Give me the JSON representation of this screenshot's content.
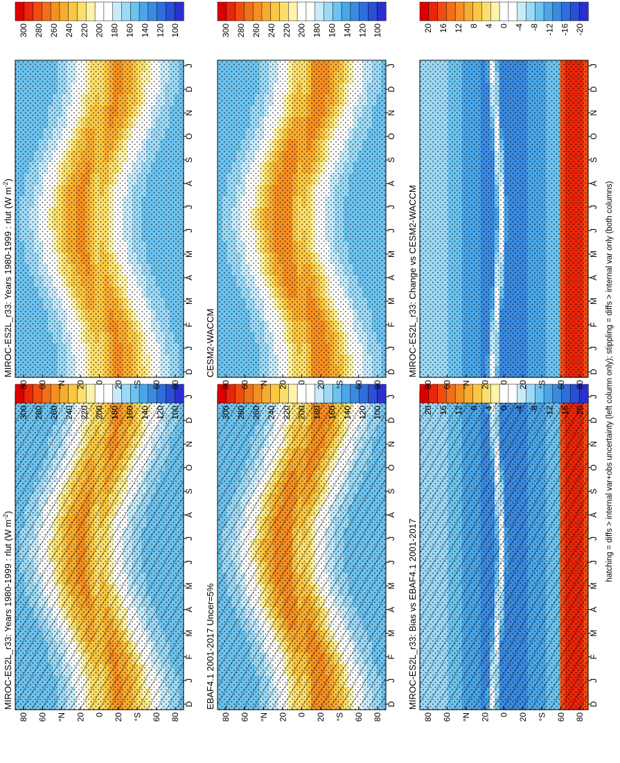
{
  "footnote": "hatching = diffs > internal var+obs uncertainty (left column only); stippling = diffs > internal var only (both columns)",
  "colors": {
    "abs_scale": [
      "#dc0000",
      "#e8260a",
      "#f04c10",
      "#f26f1a",
      "#f58f22",
      "#f7ac30",
      "#f9c743",
      "#fbdf6e",
      "#fdf3ab",
      "#ffffff",
      "#ffffff",
      "#c8ebfa",
      "#9cd9f6",
      "#6dc3ef",
      "#4aa6e8",
      "#3b8ae0",
      "#2f6edb",
      "#2a50d6",
      "#2a30cf"
    ],
    "diff_scale": [
      "#dc0000",
      "#e8260a",
      "#f04c10",
      "#f26f1a",
      "#f58f22",
      "#f7ac30",
      "#f9c743",
      "#fbdf6e",
      "#fdf3ab",
      "#ffffff",
      "#ffffff",
      "#c8ebfa",
      "#9cd9f6",
      "#6dc3ef",
      "#4aa6e8",
      "#3b8ae0",
      "#2f6edb",
      "#2a50d6",
      "#2a30cf"
    ]
  },
  "chart_data": [
    {
      "type": "heatmap",
      "title": "MIROC-ES2L_r33: Years 1980-1999 : rlut (W m",
      "title_sup": "-2",
      "title_end": ")",
      "x_ticks": [
        "D",
        "J",
        "F",
        "M",
        "A",
        "M",
        "J",
        "J",
        "A",
        "S",
        "O",
        "N",
        "D",
        "J"
      ],
      "y_ticks": [
        "80",
        "60",
        "°N",
        "20",
        "0",
        "20",
        "°S",
        "60",
        "80"
      ],
      "colorbar_ticks": [
        "300",
        "280",
        "260",
        "240",
        "220",
        "200",
        "180",
        "160",
        "140",
        "120",
        "100"
      ],
      "hatched": true,
      "stippled": true,
      "field": "abs_model"
    },
    {
      "type": "heatmap",
      "title": "MIROC-ES2L_r33: Years 1980-1999 : rlut (W m",
      "title_sup": "-2",
      "title_end": ")",
      "x_ticks": [
        "D",
        "J",
        "F",
        "M",
        "A",
        "M",
        "J",
        "J",
        "A",
        "S",
        "O",
        "N",
        "D",
        "J"
      ],
      "y_ticks": [
        "80",
        "60",
        "°N",
        "20",
        "0",
        "20",
        "°S",
        "60",
        "80"
      ],
      "colorbar_ticks": [
        "300",
        "280",
        "260",
        "240",
        "220",
        "200",
        "180",
        "160",
        "140",
        "120",
        "100"
      ],
      "hatched": false,
      "stippled": true,
      "field": "abs_model"
    },
    {
      "type": "heatmap",
      "title": "EBAF4.1 2001-2017 Uncer=5%",
      "x_ticks": [
        "D",
        "J",
        "F",
        "M",
        "A",
        "M",
        "J",
        "J",
        "A",
        "S",
        "O",
        "N",
        "D",
        "J"
      ],
      "y_ticks": [
        "80",
        "60",
        "°N",
        "20",
        "0",
        "20",
        "°S",
        "60",
        "80"
      ],
      "colorbar_ticks": [
        "300",
        "280",
        "260",
        "240",
        "220",
        "200",
        "180",
        "160",
        "140",
        "120",
        "100"
      ],
      "hatched": true,
      "stippled": true,
      "field": "abs_obs"
    },
    {
      "type": "heatmap",
      "title": "CESM2-WACCM",
      "x_ticks": [
        "D",
        "J",
        "F",
        "M",
        "A",
        "M",
        "J",
        "J",
        "A",
        "S",
        "O",
        "N",
        "D",
        "J"
      ],
      "y_ticks": [
        "80",
        "60",
        "°N",
        "20",
        "0",
        "20",
        "°S",
        "60",
        "80"
      ],
      "colorbar_ticks": [
        "300",
        "280",
        "260",
        "240",
        "220",
        "200",
        "180",
        "160",
        "140",
        "120",
        "100"
      ],
      "hatched": false,
      "stippled": true,
      "field": "abs_obs"
    },
    {
      "type": "heatmap",
      "title": "MIROC-ES2L_r33: Bias vs EBAF4.1 2001-2017",
      "x_ticks": [
        "D",
        "J",
        "F",
        "M",
        "A",
        "M",
        "J",
        "J",
        "A",
        "S",
        "O",
        "N",
        "D",
        "J"
      ],
      "y_ticks": [
        "80",
        "60",
        "°N",
        "20",
        "0",
        "20",
        "°S",
        "60",
        "80"
      ],
      "colorbar_ticks": [
        "20",
        "16",
        "12",
        "8",
        "4",
        "0",
        "-4",
        "-8",
        "-12",
        "-16",
        "-20"
      ],
      "hatched": true,
      "stippled": true,
      "field": "diff"
    },
    {
      "type": "heatmap",
      "title": "MIROC-ES2L_r33: Change vs CESM2-WACCM",
      "x_ticks": [
        "D",
        "J",
        "F",
        "M",
        "A",
        "M",
        "J",
        "J",
        "A",
        "S",
        "O",
        "N",
        "D",
        "J"
      ],
      "y_ticks": [
        "80",
        "60",
        "°N",
        "20",
        "0",
        "20",
        "°S",
        "60",
        "80"
      ],
      "colorbar_ticks": [
        "20",
        "16",
        "12",
        "8",
        "4",
        "0",
        "-4",
        "-8",
        "-12",
        "-16",
        "-20"
      ],
      "hatched": false,
      "stippled": true,
      "field": "diff"
    }
  ]
}
